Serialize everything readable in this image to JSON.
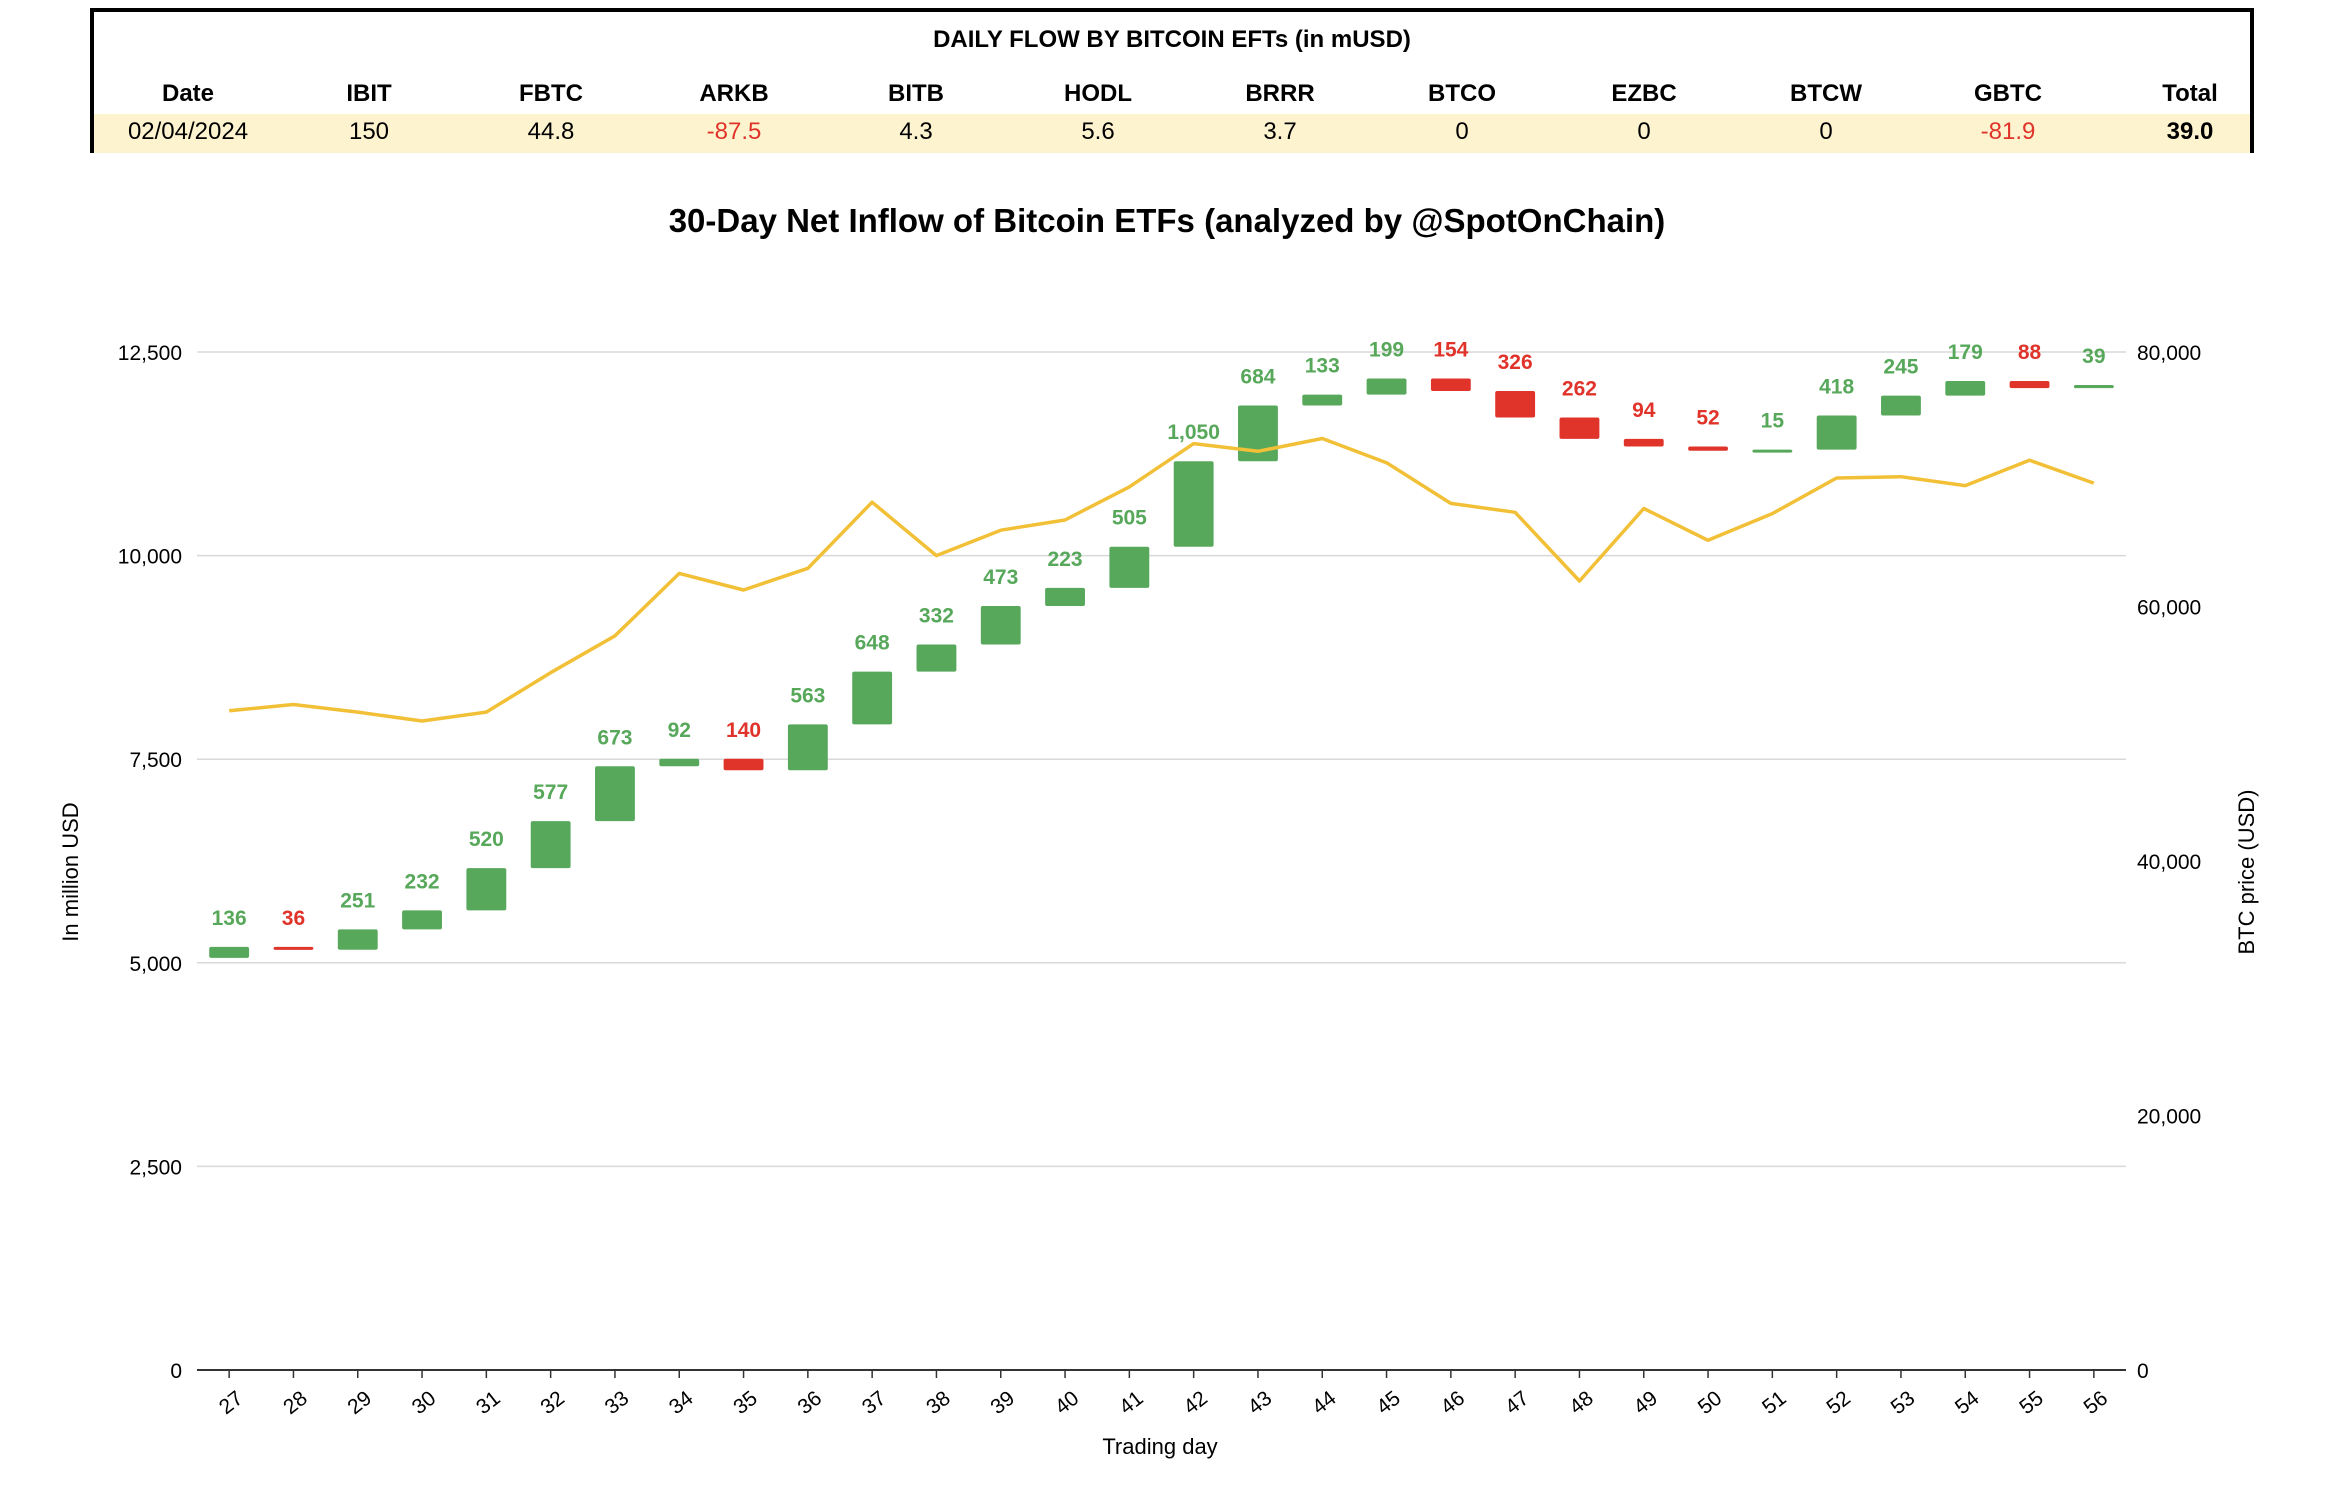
{
  "table": {
    "title": "DAILY FLOW BY BITCOIN EFTs (in mUSD)",
    "columns": [
      "Date",
      "IBIT",
      "FBTC",
      "ARKB",
      "BITB",
      "HODL",
      "BRRR",
      "BTCO",
      "EZBC",
      "BTCW",
      "GBTC",
      "Total"
    ],
    "row": [
      "02/04/2024",
      "150",
      "44.8",
      "-87.5",
      "4.3",
      "5.6",
      "3.7",
      "0",
      "0",
      "0",
      "-81.9",
      "39.0"
    ]
  },
  "colors": {
    "inflow": "#57a85b",
    "outflow": "#e0342b",
    "btc_line": "#f2c037",
    "grid": "#d9d9d9",
    "row_highlight": "#fdf3cf"
  },
  "chart_data": {
    "type": "waterfall",
    "title": "30-Day Net Inflow of Bitcoin ETFs (analyzed by @SpotOnChain)",
    "xlabel": "Trading day",
    "ylabel": "In million USD",
    "y2label": "BTC price (USD)",
    "ylim": [
      0,
      12500
    ],
    "y2lim": [
      0,
      80000
    ],
    "yticks": [
      "0",
      "2,500",
      "5,000",
      "7,500",
      "10,000",
      "12,500"
    ],
    "y2ticks": [
      "0",
      "20,000",
      "40,000",
      "60,000",
      "80,000"
    ],
    "categories": [
      "27",
      "28",
      "29",
      "30",
      "31",
      "32",
      "33",
      "34",
      "35",
      "36",
      "37",
      "38",
      "39",
      "40",
      "41",
      "42",
      "43",
      "44",
      "45",
      "46",
      "47",
      "48",
      "49",
      "50",
      "51",
      "52",
      "53",
      "54",
      "55",
      "56"
    ],
    "base_start": 5060,
    "flows": [
      136,
      -36,
      251,
      232,
      520,
      577,
      673,
      92,
      -140,
      563,
      648,
      332,
      473,
      223,
      505,
      1050,
      684,
      133,
      199,
      -154,
      -326,
      -262,
      -94,
      -52,
      15,
      418,
      245,
      179,
      -88,
      39
    ],
    "flow_labels": [
      "136",
      "36",
      "251",
      "232",
      "520",
      "577",
      "673",
      "92",
      "140",
      "563",
      "648",
      "332",
      "473",
      "223",
      "505",
      "1,050",
      "684",
      "133",
      "199",
      "154",
      "326",
      "262",
      "94",
      "52",
      "15",
      "418",
      "245",
      "179",
      "88",
      "39"
    ],
    "btc_price": [
      51800,
      52300,
      51700,
      51000,
      51700,
      54800,
      57700,
      62600,
      61300,
      63000,
      68200,
      64000,
      66000,
      66800,
      69400,
      72800,
      72200,
      73200,
      71300,
      68100,
      67400,
      62000,
      67700,
      65200,
      67300,
      70100,
      70200,
      69500,
      71500,
      69700
    ],
    "legend": "none",
    "grid": true
  }
}
